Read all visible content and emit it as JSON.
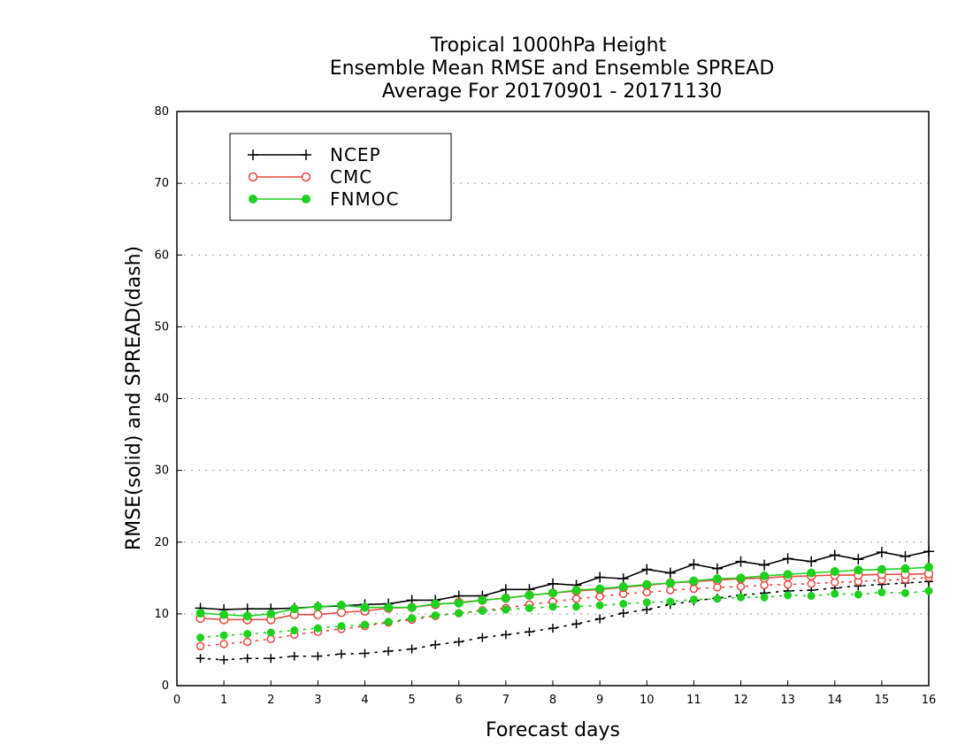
{
  "chart_data": {
    "type": "line",
    "title_lines": [
      "Tropical 1000hPa Height",
      "Ensemble Mean RMSE and Ensemble SPREAD",
      "Average For 20170901 - 20171130"
    ],
    "xlabel": "Forecast days",
    "ylabel": "RMSE(solid) and SPREAD(dash)",
    "xlim": [
      0,
      16
    ],
    "ylim": [
      0,
      80
    ],
    "x_ticks": [
      0,
      1,
      2,
      3,
      4,
      5,
      6,
      7,
      8,
      9,
      10,
      11,
      12,
      13,
      14,
      15,
      16
    ],
    "y_ticks": [
      0,
      10,
      20,
      30,
      40,
      50,
      60,
      70,
      80
    ],
    "grid": "horizontal dotted",
    "legend_position": "top-left",
    "x": [
      0.5,
      1,
      1.5,
      2,
      2.5,
      3,
      3.5,
      4,
      4.5,
      5,
      5.5,
      6,
      6.5,
      7,
      7.5,
      8,
      8.5,
      9,
      9.5,
      10,
      10.5,
      11,
      11.5,
      12,
      12.5,
      13,
      13.5,
      14,
      14.5,
      15,
      15.5,
      16
    ],
    "series": [
      {
        "name": "NCEP",
        "color": "#000000",
        "marker": "plus",
        "rmse": [
          10.8,
          10.6,
          10.7,
          10.7,
          10.8,
          11.0,
          11.1,
          11.3,
          11.4,
          11.9,
          11.9,
          12.5,
          12.5,
          13.4,
          13.4,
          14.2,
          14.0,
          15.1,
          14.9,
          16.2,
          15.7,
          16.9,
          16.3,
          17.3,
          16.8,
          17.7,
          17.3,
          18.2,
          17.6,
          18.6,
          18.0,
          18.7
        ],
        "spread": [
          3.8,
          3.6,
          3.8,
          3.8,
          4.1,
          4.1,
          4.4,
          4.5,
          4.8,
          5.1,
          5.7,
          6.1,
          6.7,
          7.1,
          7.5,
          8.0,
          8.6,
          9.3,
          10.1,
          10.6,
          11.3,
          11.8,
          12.2,
          12.6,
          12.9,
          13.2,
          13.3,
          13.6,
          13.9,
          14.1,
          14.3,
          14.5
        ]
      },
      {
        "name": "CMC",
        "color": "#e8473f",
        "marker": "open-circle",
        "rmse": [
          9.4,
          9.2,
          9.2,
          9.2,
          9.9,
          9.9,
          10.2,
          10.4,
          10.8,
          10.9,
          11.3,
          11.6,
          11.9,
          12.2,
          12.6,
          12.9,
          13.2,
          13.4,
          13.7,
          14.0,
          14.3,
          14.5,
          14.7,
          14.9,
          15.0,
          15.2,
          15.3,
          15.4,
          15.4,
          15.5,
          15.5,
          15.6
        ],
        "spread": [
          5.5,
          5.8,
          6.1,
          6.5,
          7.1,
          7.5,
          7.9,
          8.3,
          8.8,
          9.2,
          9.7,
          10.1,
          10.5,
          10.8,
          11.3,
          11.7,
          12.1,
          12.4,
          12.8,
          13.0,
          13.3,
          13.5,
          13.7,
          13.8,
          14.0,
          14.1,
          14.2,
          14.4,
          14.5,
          14.7,
          14.8,
          15.1
        ]
      },
      {
        "name": "FNMOC",
        "color": "#1fd11f",
        "marker": "filled-circle",
        "rmse": [
          10.1,
          9.9,
          9.7,
          10.0,
          10.7,
          11.0,
          11.2,
          10.9,
          10.9,
          10.9,
          11.4,
          11.5,
          11.9,
          12.2,
          12.6,
          12.9,
          13.3,
          13.5,
          13.8,
          14.1,
          14.3,
          14.6,
          14.9,
          15.0,
          15.3,
          15.5,
          15.7,
          15.9,
          16.1,
          16.2,
          16.3,
          16.5
        ],
        "spread": [
          6.7,
          7.0,
          7.2,
          7.4,
          7.7,
          8.0,
          8.3,
          8.5,
          8.9,
          9.4,
          9.8,
          10.1,
          10.4,
          10.6,
          10.8,
          11.0,
          11.0,
          11.2,
          11.4,
          11.6,
          11.7,
          12.0,
          12.1,
          12.3,
          12.3,
          12.6,
          12.5,
          12.8,
          12.7,
          13.0,
          12.9,
          13.2
        ]
      }
    ]
  }
}
